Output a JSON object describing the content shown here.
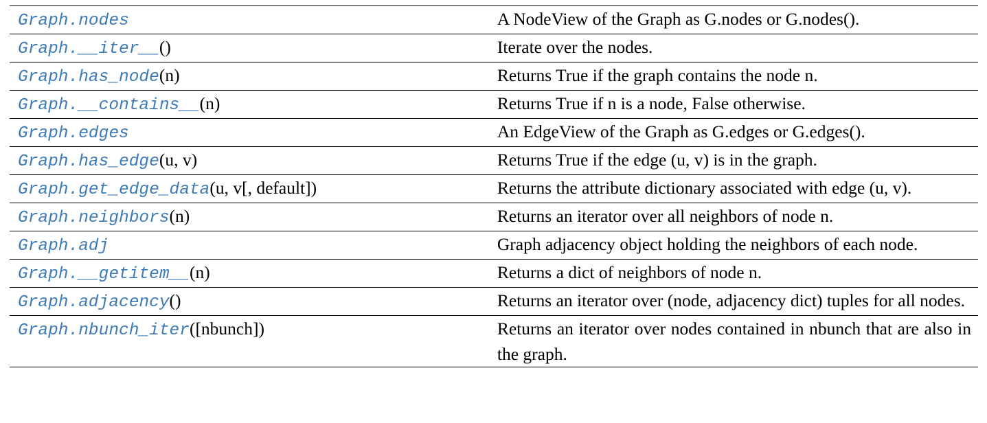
{
  "table": {
    "rows": [
      {
        "name": "Graph.nodes",
        "args": "",
        "description": "A NodeView of the Graph as G.nodes or G.nodes()."
      },
      {
        "name": "Graph.__iter__",
        "args": "()",
        "description": "Iterate over the nodes."
      },
      {
        "name": "Graph.has_node",
        "args": "(n)",
        "description": "Returns True if the graph contains the node n."
      },
      {
        "name": "Graph.__contains__",
        "args": "(n)",
        "description": "Returns True if n is a node, False otherwise."
      },
      {
        "name": "Graph.edges",
        "args": "",
        "description": "An EdgeView of the Graph as G.edges or G.edges()."
      },
      {
        "name": "Graph.has_edge",
        "args": "(u, v)",
        "description": "Returns True if the edge (u, v) is in the graph."
      },
      {
        "name": "Graph.get_edge_data",
        "args": "(u, v[, default])",
        "description": "Returns the attribute dictionary associated with edge (u, v)."
      },
      {
        "name": "Graph.neighbors",
        "args": "(n)",
        "description": "Returns an iterator over all neighbors of node n."
      },
      {
        "name": "Graph.adj",
        "args": "",
        "description": "Graph adjacency object holding the neighbors of each node."
      },
      {
        "name": "Graph.__getitem__",
        "args": "(n)",
        "description": "Returns a dict of neighbors of node n."
      },
      {
        "name": "Graph.adjacency",
        "args": "()",
        "description": "Returns an iterator over (node, adjacency dict) tuples for all nodes."
      },
      {
        "name": "Graph.nbunch_iter",
        "args": "([nbunch])",
        "description": "Returns an iterator over nodes contained in nbunch that are also in the graph."
      }
    ]
  },
  "colors": {
    "link": "#3d7ab8",
    "text": "#000000",
    "rule": "#000000",
    "background": "#ffffff"
  }
}
